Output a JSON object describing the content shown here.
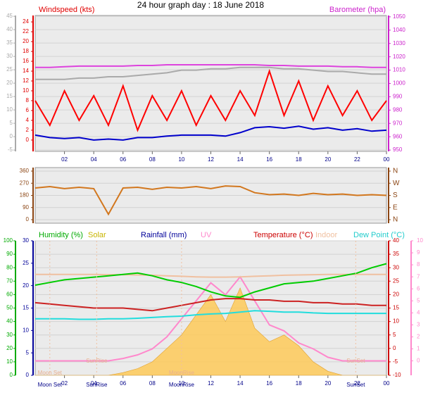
{
  "chart_data": [
    {
      "type": "line",
      "title": "24 hour graph day : 18 June 2018",
      "labels": [
        {
          "text": "Windspeed (kts)",
          "color": "#e00000"
        },
        {
          "text": "Barometer (hpa)",
          "color": "#cc22cc"
        }
      ],
      "x": [
        0,
        1,
        2,
        3,
        4,
        5,
        6,
        7,
        8,
        9,
        10,
        11,
        12,
        13,
        14,
        15,
        16,
        17,
        18,
        19,
        20,
        21,
        22,
        23,
        24
      ],
      "xlim": [
        0,
        24
      ],
      "xticks": [
        {
          "value": 2,
          "label": "02"
        },
        {
          "value": 4,
          "label": "04"
        },
        {
          "value": 6,
          "label": "06"
        },
        {
          "value": 8,
          "label": "08"
        },
        10,
        12,
        14,
        16,
        18,
        20,
        22,
        {
          "value": 24,
          "label": "00"
        }
      ],
      "ylim": [
        -2.3,
        25.3
      ],
      "yticks": [
        0,
        2,
        4,
        6,
        8,
        10,
        12,
        14,
        16,
        18,
        20,
        22,
        24
      ],
      "y_color": "#e00000",
      "y2lim": [
        949,
        1051
      ],
      "y2ticks": [
        950,
        960,
        970,
        980,
        990,
        1000,
        1010,
        1020,
        1030,
        1040,
        1050
      ],
      "y2_color": "#cc22cc",
      "y3lim": [
        -5.5,
        45.3
      ],
      "y3ticks": [
        -5,
        0,
        5,
        10,
        15,
        20,
        25,
        30,
        35,
        40,
        45
      ],
      "y3_color": "#aaaaaa",
      "grid": true,
      "grid_axis": "y3",
      "series": [
        {
          "color": "#aaaaaa",
          "axis": "y2",
          "values": [
            1003,
            1003,
            1003,
            1004,
            1004,
            1005,
            1005,
            1006,
            1007,
            1008,
            1010,
            1010,
            1011,
            1011,
            1012,
            1012,
            1012,
            1011,
            1011,
            1010,
            1009,
            1009,
            1008,
            1007,
            1007
          ]
        },
        {
          "color": "#dd44dd",
          "axis": "y2",
          "values": [
            1012,
            1012,
            1012.5,
            1013,
            1013,
            1013,
            1013,
            1013.5,
            1013.5,
            1014,
            1014,
            1014,
            1014,
            1014,
            1014,
            1014,
            1013.5,
            1013.5,
            1013,
            1013,
            1013,
            1012.5,
            1012.5,
            1012,
            1012
          ]
        },
        {
          "color": "#ff0000",
          "axis": "y",
          "values": [
            8,
            3,
            10,
            4,
            9,
            3,
            11,
            2,
            9,
            4,
            10,
            3,
            9,
            4,
            10,
            5,
            14,
            5,
            12,
            4,
            11,
            5,
            10,
            4,
            8
          ]
        },
        {
          "color": "#0000cc",
          "axis": "y",
          "values": [
            1,
            0.5,
            0.3,
            0.5,
            0,
            0.2,
            0,
            0.5,
            0.5,
            0.8,
            1,
            1,
            1,
            0.8,
            1.5,
            2.5,
            2.7,
            2.4,
            2.8,
            2.2,
            2.5,
            2,
            2.3,
            1.8,
            2
          ]
        }
      ]
    },
    {
      "type": "line",
      "x": [
        0,
        1,
        2,
        3,
        4,
        5,
        6,
        7,
        8,
        9,
        10,
        11,
        12,
        13,
        14,
        15,
        16,
        17,
        18,
        19,
        20,
        21,
        22,
        23,
        24
      ],
      "xlim": [
        0,
        24
      ],
      "ylim": [
        -26,
        386
      ],
      "yticks": [
        0,
        90,
        180,
        270,
        360
      ],
      "y_color": "#8b4513",
      "y2lim": [
        -26,
        386
      ],
      "y2ticks": [
        {
          "value": 0,
          "label": "N"
        },
        {
          "value": 90,
          "label": "E"
        },
        {
          "value": 180,
          "label": "S"
        },
        {
          "value": 270,
          "label": "W"
        },
        {
          "value": 360,
          "label": "N"
        }
      ],
      "y2_color": "#8b4513",
      "grid": true,
      "grid_axis": "y",
      "series": [
        {
          "color": "#d2771e",
          "axis": "y",
          "values": [
            235,
            245,
            230,
            240,
            230,
            40,
            235,
            240,
            225,
            240,
            235,
            245,
            230,
            250,
            245,
            200,
            185,
            190,
            180,
            195,
            185,
            190,
            180,
            185,
            180
          ]
        }
      ]
    },
    {
      "type": "line",
      "labels": [
        {
          "text": "Humidity (%)",
          "color": "#00aa00"
        },
        {
          "text": "Solar",
          "color": "#c8b400"
        },
        {
          "text": "Rainfall (mm)",
          "color": "#000099"
        },
        {
          "text": "UV",
          "color": "#ff88cc"
        },
        {
          "text": "Temperature (°C)",
          "color": "#cc0000"
        },
        {
          "text": "Indoor",
          "color": "#f0c0a0"
        },
        {
          "text": "Dew Point (°C)",
          "color": "#22cccc"
        }
      ],
      "x": [
        0,
        1,
        2,
        3,
        4,
        5,
        6,
        7,
        8,
        9,
        10,
        11,
        12,
        13,
        14,
        15,
        16,
        17,
        18,
        19,
        20,
        21,
        22,
        23,
        24
      ],
      "xlim": [
        0,
        24
      ],
      "xticks": [
        {
          "value": 2,
          "label": "02"
        },
        {
          "value": 4,
          "label": "04"
        },
        {
          "value": 6,
          "label": "06"
        },
        {
          "value": 8,
          "label": "08"
        },
        10,
        12,
        14,
        16,
        18,
        20,
        22,
        {
          "value": 24,
          "label": "00"
        }
      ],
      "ylim": [
        0,
        30
      ],
      "yticks": [
        0,
        5,
        10,
        15,
        20,
        25,
        30
      ],
      "y_color": "#000099",
      "y2lim": [
        -10,
        40
      ],
      "y2ticks": [
        -10,
        -5,
        0,
        5,
        10,
        15,
        20,
        25,
        30,
        35,
        40
      ],
      "y2_color": "#cc0000",
      "y3lim": [
        0,
        100
      ],
      "y3ticks": [
        0,
        10,
        20,
        30,
        40,
        50,
        60,
        70,
        80,
        90,
        100
      ],
      "y3_color": "#00aa00",
      "y4lim": [
        -1.2,
        10
      ],
      "y4ticks": [
        0,
        1,
        2,
        3,
        4,
        5,
        6,
        7,
        8,
        9,
        10
      ],
      "y4_color": "#ff88cc",
      "grid": true,
      "grid_axis": "y2",
      "annotations": [
        {
          "text": "Moon Set",
          "x": 1
        },
        {
          "text": "SunRise",
          "x": 4.2
        },
        {
          "text": "MoonRise",
          "x": 10
        },
        {
          "text": "SunSet",
          "x": 21.9
        }
      ],
      "series": [
        {
          "color": "#ffc850",
          "axis": "y3",
          "style": "area",
          "values": [
            0,
            0,
            0,
            0,
            0,
            0,
            2,
            5,
            10,
            20,
            30,
            45,
            60,
            40,
            65,
            35,
            25,
            30,
            22,
            10,
            3,
            0,
            0,
            0,
            0
          ]
        },
        {
          "color": "#ff88cc",
          "axis": "y4",
          "values": [
            0,
            0,
            0,
            0,
            0,
            0,
            0.2,
            0.5,
            1,
            2,
            3.5,
            5,
            6.5,
            5.5,
            7,
            5,
            3,
            2.5,
            1.5,
            1,
            0.3,
            0,
            0,
            0,
            0
          ]
        },
        {
          "color": "#f0c0a0",
          "axis": "y2",
          "values": [
            27.5,
            27.5,
            27.5,
            27.5,
            27.5,
            27.4,
            27.4,
            27.3,
            27.2,
            27,
            26.8,
            26.6,
            26.5,
            26.5,
            26.6,
            26.8,
            27,
            27.2,
            27.3,
            27.4,
            27.5,
            27.5,
            27.5,
            27.5,
            27.5
          ]
        },
        {
          "color": "#00cc00",
          "axis": "y3",
          "values": [
            67,
            69,
            71,
            72,
            73,
            74,
            75,
            76,
            74,
            71,
            69,
            66,
            62,
            59,
            58,
            62,
            65,
            68,
            69,
            70,
            72,
            74,
            76,
            80,
            83
          ]
        },
        {
          "color": "#22dddd",
          "axis": "y2",
          "values": [
            11,
            11,
            11,
            10.8,
            10.8,
            11,
            11,
            11.2,
            11.5,
            11.8,
            12,
            12.5,
            12.8,
            13,
            13.5,
            14,
            13.8,
            13.5,
            13.5,
            13.2,
            13,
            13,
            13,
            13,
            13
          ]
        },
        {
          "color": "#cc2222",
          "axis": "y2",
          "values": [
            17,
            16.5,
            16,
            15.5,
            15,
            15,
            15,
            14.5,
            14,
            15,
            16,
            17,
            18,
            18.5,
            18.5,
            18,
            18,
            17.5,
            17.5,
            17,
            17,
            16.5,
            16.5,
            16,
            16
          ]
        }
      ]
    }
  ]
}
